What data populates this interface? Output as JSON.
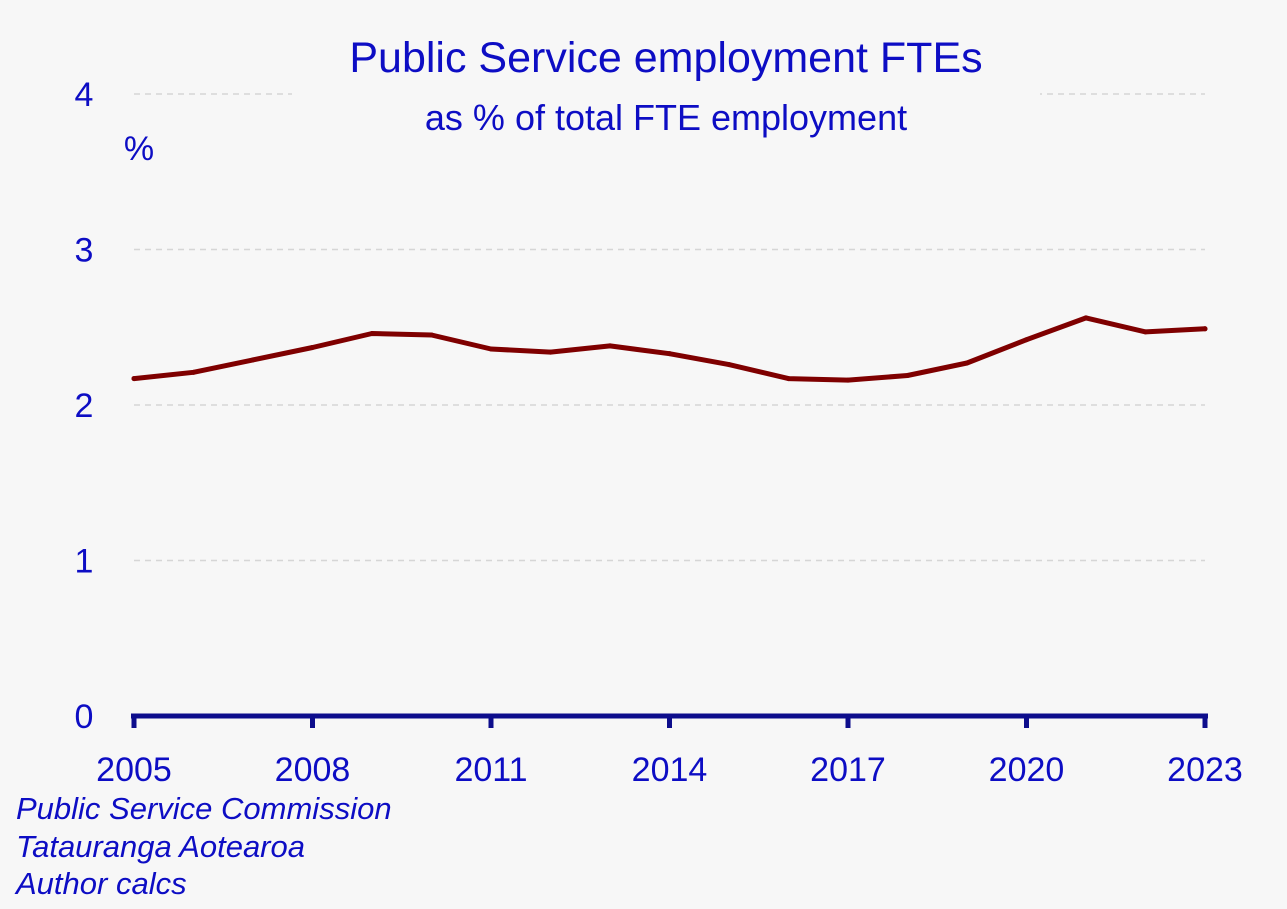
{
  "chart_data": {
    "type": "line",
    "title": "Public Service employment FTEs",
    "subtitle": "as % of total FTE employment",
    "xlabel": "",
    "ylabel": "%",
    "xlim": [
      2005,
      2023
    ],
    "ylim": [
      0,
      4
    ],
    "x_ticks": [
      "2005",
      "2008",
      "2011",
      "2014",
      "2017",
      "2020",
      "2023"
    ],
    "y_ticks": [
      "0",
      "1",
      "2",
      "3",
      "4"
    ],
    "grid": true,
    "legend": "none",
    "series": [
      {
        "color": "#7f0000",
        "x": [
          2005,
          2006,
          2007,
          2008,
          2009,
          2010,
          2011,
          2012,
          2013,
          2014,
          2015,
          2016,
          2017,
          2018,
          2019,
          2020,
          2021,
          2022,
          2023
        ],
        "values": [
          2.17,
          2.21,
          2.29,
          2.37,
          2.46,
          2.45,
          2.36,
          2.34,
          2.38,
          2.33,
          2.26,
          2.17,
          2.16,
          2.19,
          2.27,
          2.42,
          2.56,
          2.47,
          2.49
        ]
      }
    ]
  },
  "source": {
    "lines": [
      "Public Service Commission",
      "Tatauranga Aotearoa",
      "Author calcs"
    ]
  },
  "colors": {
    "text": "#0d0dc4",
    "axis": "#0d0d8c",
    "line": "#7f0000",
    "grid": "#d6d6d6",
    "background": "#f7f7f7"
  }
}
